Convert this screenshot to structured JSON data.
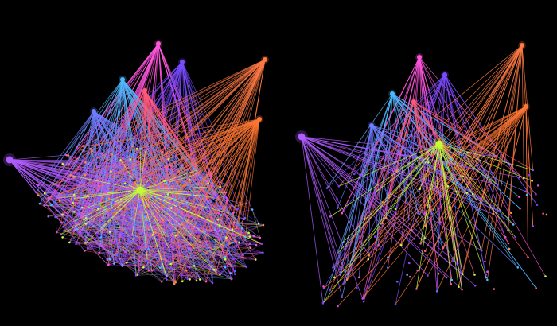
{
  "background_color": "#000000",
  "panels": [
    {
      "name": "dense-network-panel",
      "description_visible": "",
      "edge_density": "dense",
      "hub_nodes": [
        {
          "color": "#ff55dd"
        },
        {
          "color": "#7a4bff"
        },
        {
          "color": "#ff7a44"
        },
        {
          "color": "#4fb8ff"
        },
        {
          "color": "#ff5a7a"
        },
        {
          "color": "#6f7dff"
        },
        {
          "color": "#ff7733"
        },
        {
          "color": "#b05cff"
        },
        {
          "color": "#c5ff33"
        }
      ]
    },
    {
      "name": "sparse-network-panel",
      "description_visible": "",
      "edge_density": "sparse",
      "hub_nodes": [
        {
          "color": "#ff55dd"
        },
        {
          "color": "#7a4bff"
        },
        {
          "color": "#ff7a44"
        },
        {
          "color": "#4fb8ff"
        },
        {
          "color": "#ff5a7a"
        },
        {
          "color": "#6f7dff"
        },
        {
          "color": "#ff7733"
        },
        {
          "color": "#b05cff"
        },
        {
          "color": "#c5ff33"
        }
      ]
    }
  ],
  "edge_palette": [
    "#a040ff",
    "#7a3cff",
    "#d04cff",
    "#ff5c8a",
    "#ff8a3c",
    "#4fb8ff",
    "#c8ff3a",
    "#ff4fd0",
    "#5a6cff"
  ]
}
